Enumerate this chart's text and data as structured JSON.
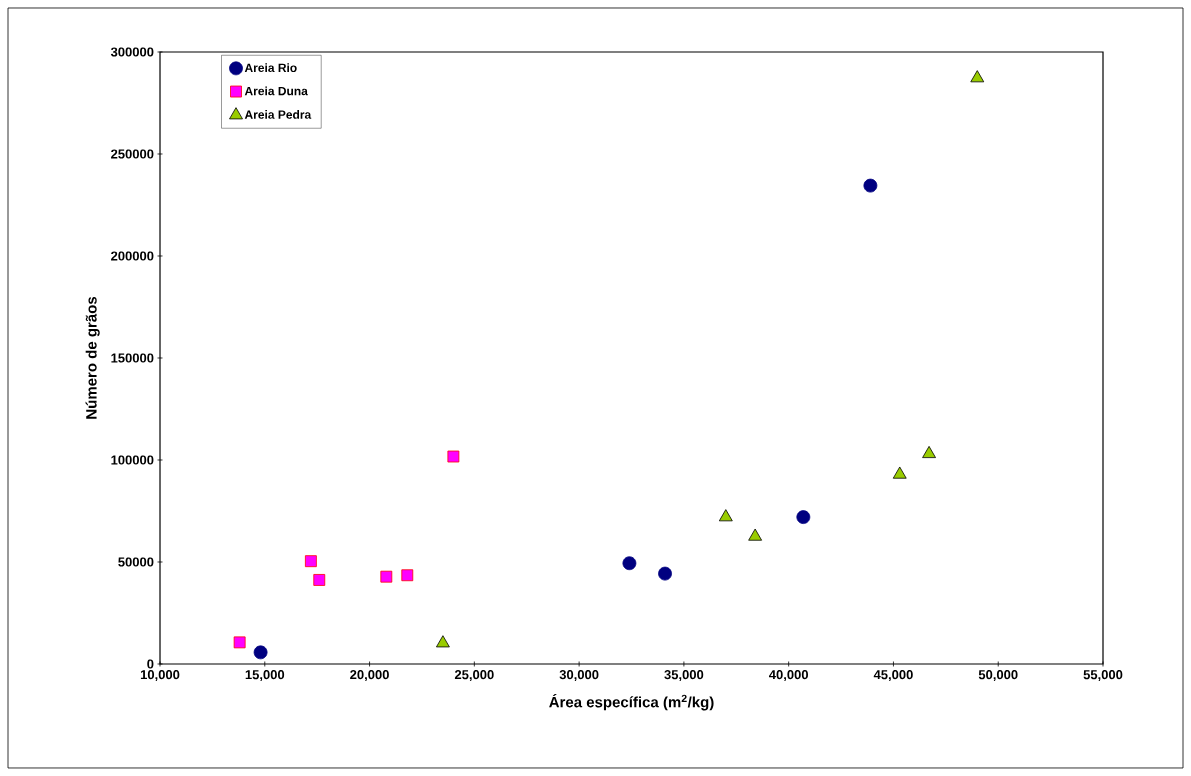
{
  "chart_data": {
    "type": "scatter",
    "xlabel": "Área específica (m$^{2}$/kg)",
    "ylabel": "Número de grãos",
    "xlim": [
      10000,
      55000
    ],
    "ylim": [
      0,
      300000
    ],
    "xticks": [
      {
        "value": 10000,
        "label": "10,000"
      },
      {
        "value": 15000,
        "label": "15,000"
      },
      {
        "value": 20000,
        "label": "20,000"
      },
      {
        "value": 25000,
        "label": "25,000"
      },
      {
        "value": 30000,
        "label": "30,000"
      },
      {
        "value": 35000,
        "label": "35,000"
      },
      {
        "value": 40000,
        "label": "40,000"
      },
      {
        "value": 45000,
        "label": "45,000"
      },
      {
        "value": 50000,
        "label": "50,000"
      },
      {
        "value": 55000,
        "label": "55,000"
      }
    ],
    "yticks": [
      0,
      50000,
      100000,
      150000,
      200000,
      250000,
      300000
    ],
    "grid": false,
    "legend": "top left",
    "series": [
      {
        "name": "Areia Rio",
        "color": "#000080",
        "marker": "circle",
        "x": [
          14800,
          32400,
          34100,
          40700,
          43900
        ],
        "values": [
          5700,
          49400,
          44300,
          72000,
          234500
        ]
      },
      {
        "name": "Areia Duna",
        "color": "#ff00ff",
        "marker": "square",
        "x": [
          13800,
          17200,
          17600,
          20800,
          21800,
          24000
        ],
        "values": [
          10600,
          50400,
          41200,
          42800,
          43500,
          101700
        ]
      },
      {
        "name": "Areia Pedra",
        "color": "#99cc00",
        "marker": "triangle",
        "x": [
          23500,
          37000,
          38400,
          45300,
          46700,
          49000
        ],
        "values": [
          10200,
          72000,
          62500,
          92900,
          103000,
          287200
        ]
      }
    ]
  }
}
